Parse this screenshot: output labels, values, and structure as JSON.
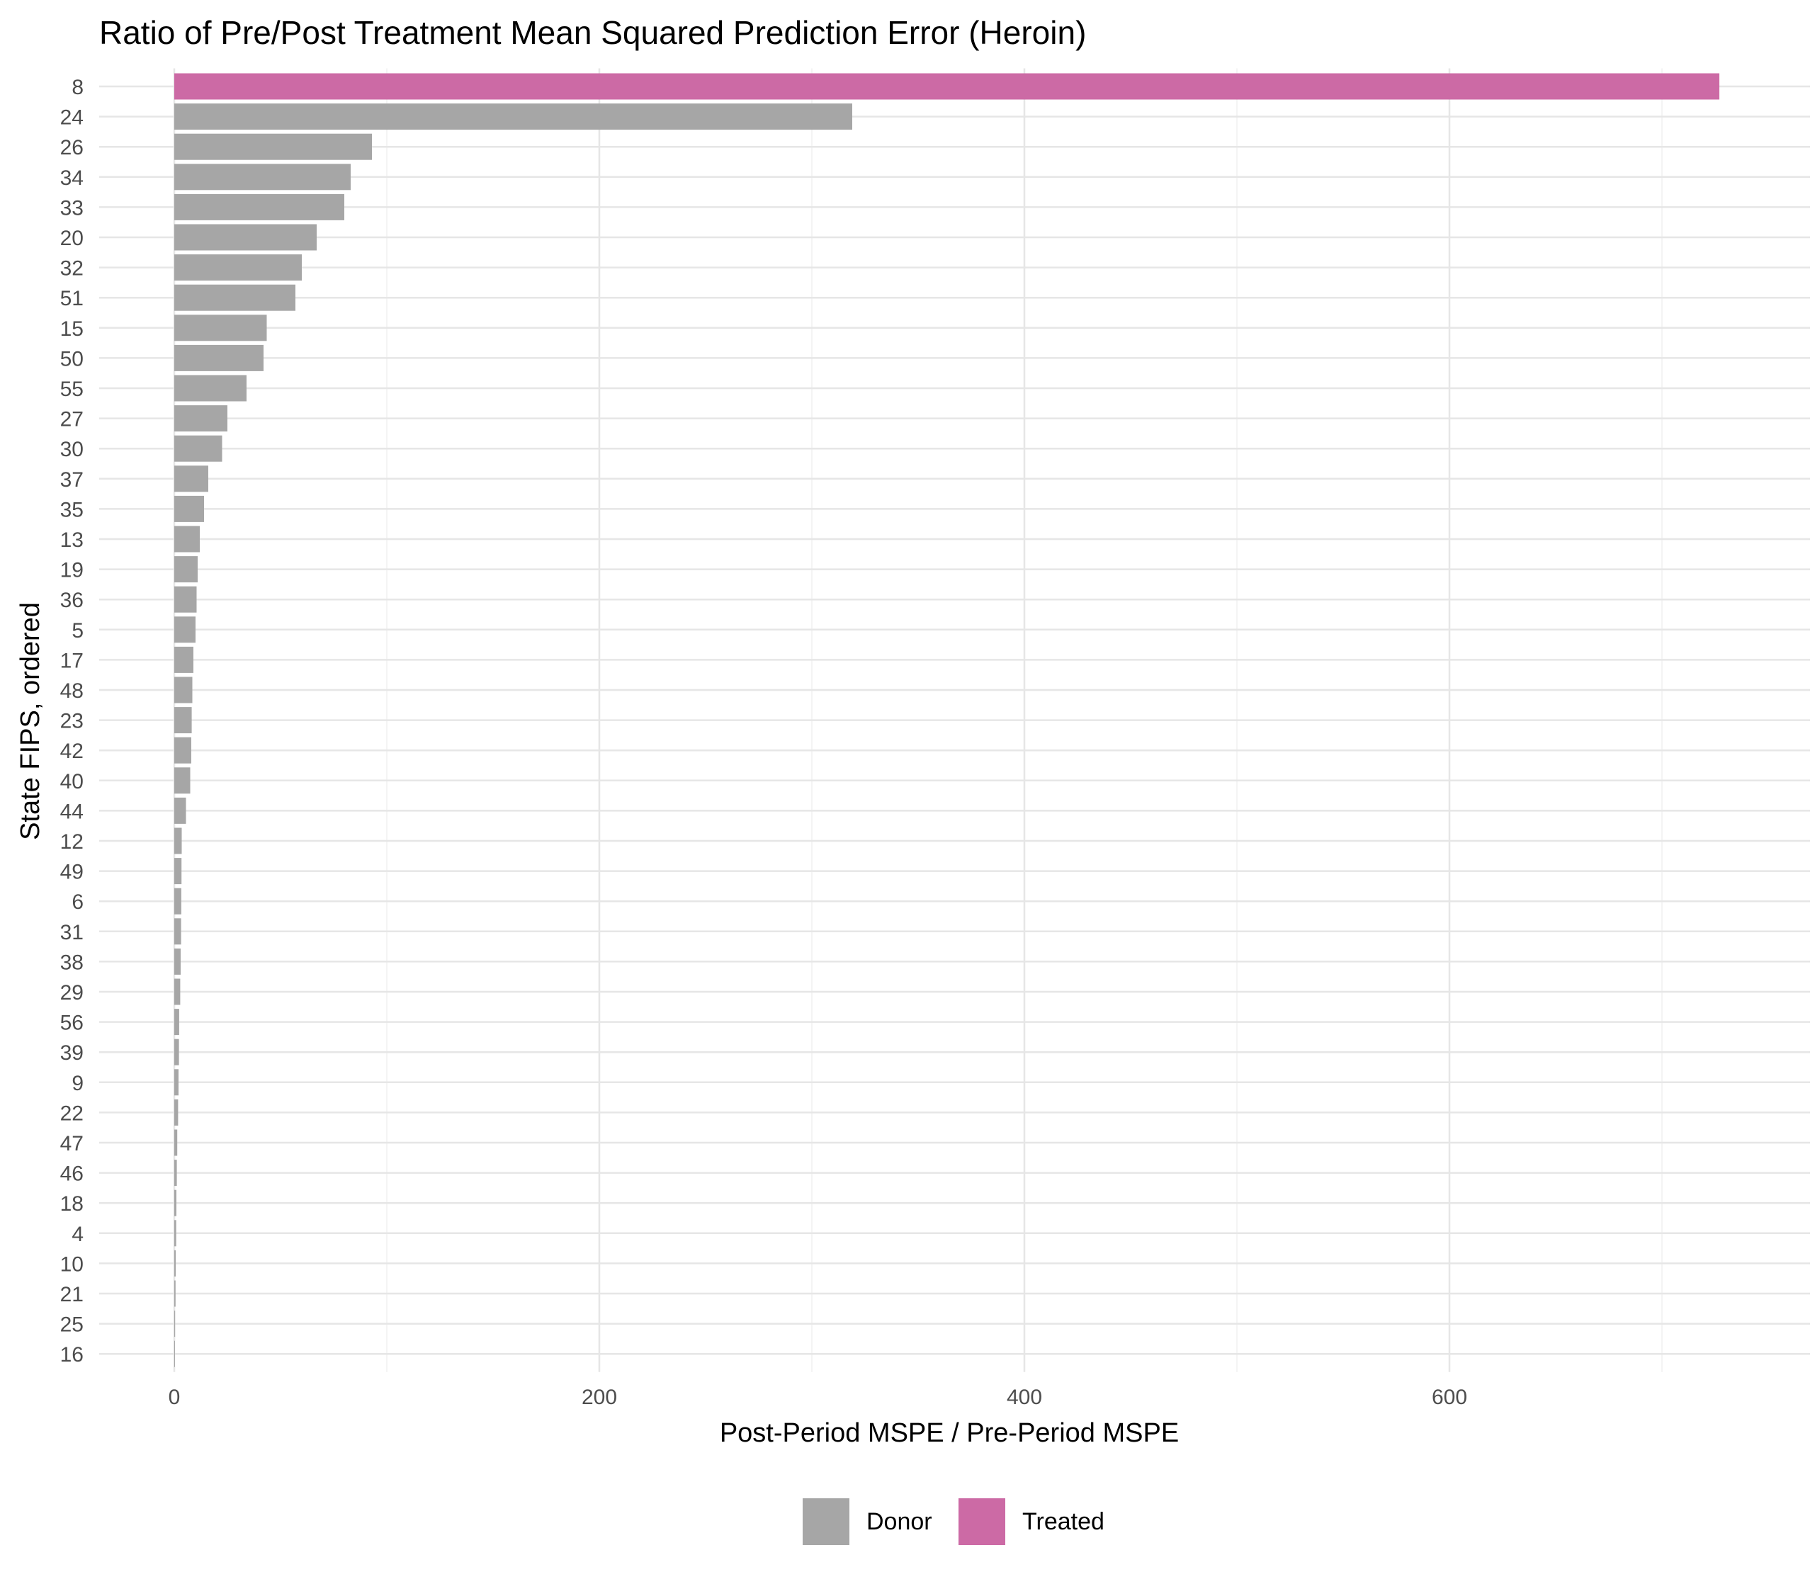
{
  "chart_data": {
    "type": "bar",
    "orientation": "horizontal",
    "title": "Ratio of Pre/Post Treatment Mean Squared Prediction Error (Heroin)",
    "xlabel": "Post-Period MSPE / Pre-Period MSPE",
    "ylabel": "State FIPS, ordered",
    "xlim": [
      -35,
      765
    ],
    "x_ticks": [
      0,
      200,
      400,
      600
    ],
    "grid": true,
    "legend_position": "bottom",
    "legend": [
      {
        "name": "Donor",
        "color": "#a6a6a6"
      },
      {
        "name": "Treated",
        "color": "#cc6aa5"
      }
    ],
    "categories": [
      "8",
      "24",
      "26",
      "34",
      "33",
      "20",
      "32",
      "51",
      "15",
      "50",
      "55",
      "27",
      "30",
      "37",
      "35",
      "13",
      "19",
      "36",
      "5",
      "17",
      "48",
      "23",
      "42",
      "40",
      "44",
      "12",
      "49",
      "6",
      "31",
      "38",
      "29",
      "56",
      "39",
      "9",
      "22",
      "47",
      "46",
      "18",
      "4",
      "10",
      "21",
      "25",
      "16"
    ],
    "values": [
      727,
      319,
      93,
      83,
      80,
      67,
      60,
      57,
      43.5,
      42,
      34,
      25,
      22.5,
      16,
      14,
      12,
      11,
      10.5,
      10,
      9,
      8.5,
      8.2,
      8,
      7.5,
      5.5,
      3.5,
      3.4,
      3.3,
      3.2,
      3.0,
      2.8,
      2.3,
      2.2,
      2.0,
      1.8,
      1.4,
      1.2,
      1.0,
      0.9,
      0.7,
      0.6,
      0.4,
      0.2
    ],
    "groups": [
      "Treated",
      "Donor",
      "Donor",
      "Donor",
      "Donor",
      "Donor",
      "Donor",
      "Donor",
      "Donor",
      "Donor",
      "Donor",
      "Donor",
      "Donor",
      "Donor",
      "Donor",
      "Donor",
      "Donor",
      "Donor",
      "Donor",
      "Donor",
      "Donor",
      "Donor",
      "Donor",
      "Donor",
      "Donor",
      "Donor",
      "Donor",
      "Donor",
      "Donor",
      "Donor",
      "Donor",
      "Donor",
      "Donor",
      "Donor",
      "Donor",
      "Donor",
      "Donor",
      "Donor",
      "Donor",
      "Donor",
      "Donor",
      "Donor",
      "Donor"
    ]
  }
}
